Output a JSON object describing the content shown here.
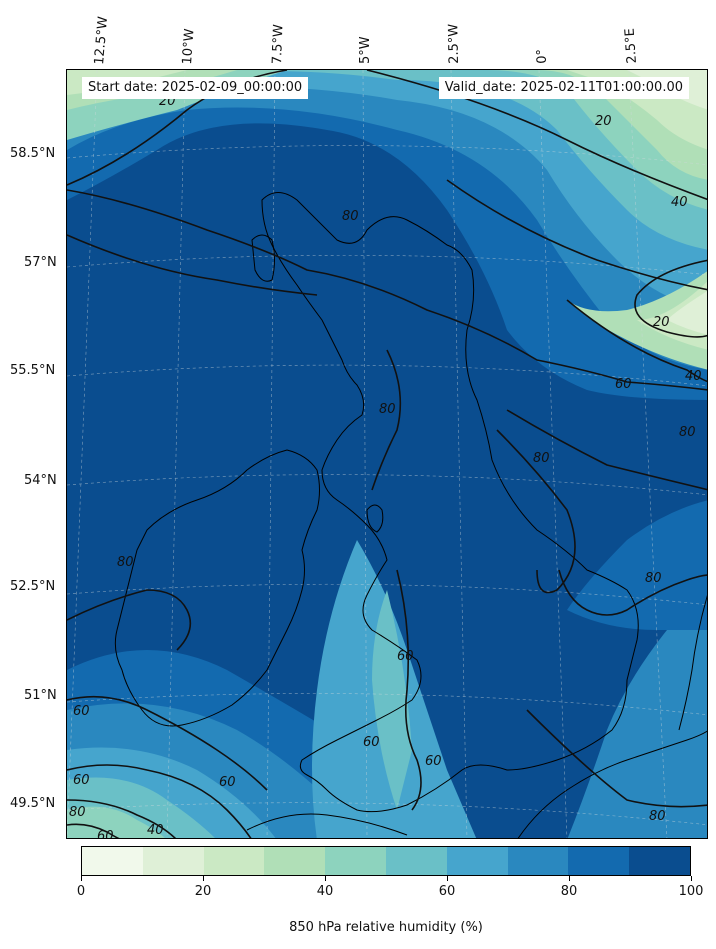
{
  "map": {
    "start_date": "Start date: 2025-02-09_00:00:00",
    "valid_date": "Valid_date: 2025-02-11T01:00:00.00",
    "lat_labels": [
      "58.5°N",
      "57°N",
      "55.5°N",
      "54°N",
      "52.5°N",
      "51°N",
      "49.5°N"
    ],
    "lon_labels": [
      "12.5°W",
      "10°W",
      "7.5°W",
      "5°W",
      "2.5°W",
      "0°",
      "2.5°E"
    ],
    "contour_labels": [
      "20",
      "20",
      "40",
      "20",
      "40",
      "60",
      "80",
      "80",
      "80",
      "80",
      "80",
      "80",
      "60",
      "60",
      "60",
      "60",
      "60",
      "60",
      "80",
      "80",
      "40",
      "60"
    ],
    "colors": {
      "coast": "#000000",
      "contour": "#111111",
      "grid": "#cfd8dc"
    }
  },
  "colorbar": {
    "ticks": [
      "0",
      "20",
      "40",
      "60",
      "80",
      "100"
    ],
    "label": "850 hPa relative humidity (%)",
    "bins": [
      "#f1f9eb",
      "#dff0d7",
      "#cbe9c4",
      "#b0dfb7",
      "#8dd3be",
      "#6ac0c7",
      "#46a5cd",
      "#2a88bf",
      "#136aaf",
      "#0a4d8f"
    ]
  }
}
